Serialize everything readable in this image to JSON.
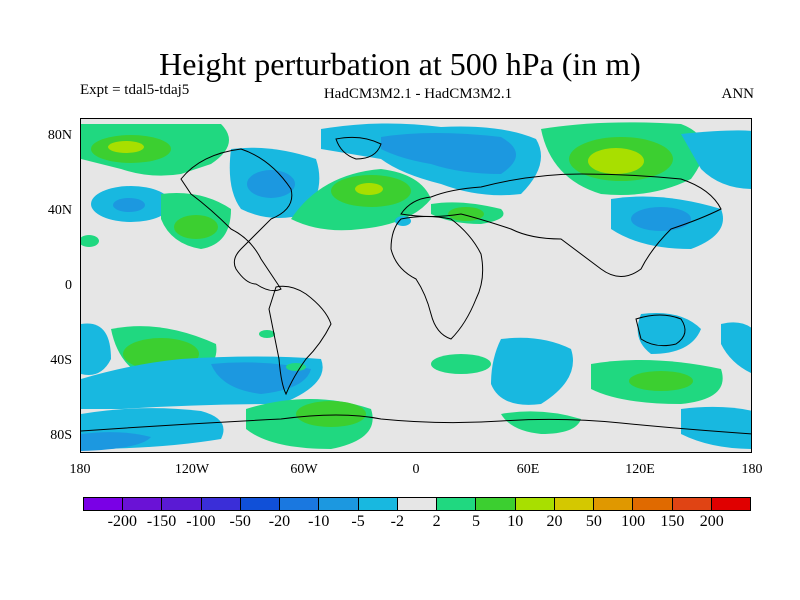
{
  "title": "Height perturbation at 500 hPa (in m)",
  "expt_label": "Expt = tdal5-tdaj5",
  "models_label": "HadCM3M2.1 - HadCM3M2.1",
  "season_label": "ANN",
  "axes": {
    "y_ticks": [
      "80N",
      "40N",
      "0",
      "40S",
      "80S"
    ],
    "x_ticks": [
      "180",
      "120W",
      "60W",
      "0",
      "60E",
      "120E",
      "180"
    ]
  },
  "colorbar": {
    "colors": [
      "#7a00e6",
      "#6a12d6",
      "#5a1ad4",
      "#3a2ed8",
      "#1050d8",
      "#1a78e0",
      "#1c98e0",
      "#18b8e0",
      "#e6e6e6",
      "#20d880",
      "#3ccf30",
      "#a8df00",
      "#d4c800",
      "#e09800",
      "#e06a00",
      "#e04414",
      "#e00000"
    ],
    "labels": [
      "-200",
      "-150",
      "-100",
      "-50",
      "-20",
      "-10",
      "-5",
      "-2",
      "2",
      "5",
      "10",
      "20",
      "50",
      "100",
      "150",
      "200"
    ]
  }
}
